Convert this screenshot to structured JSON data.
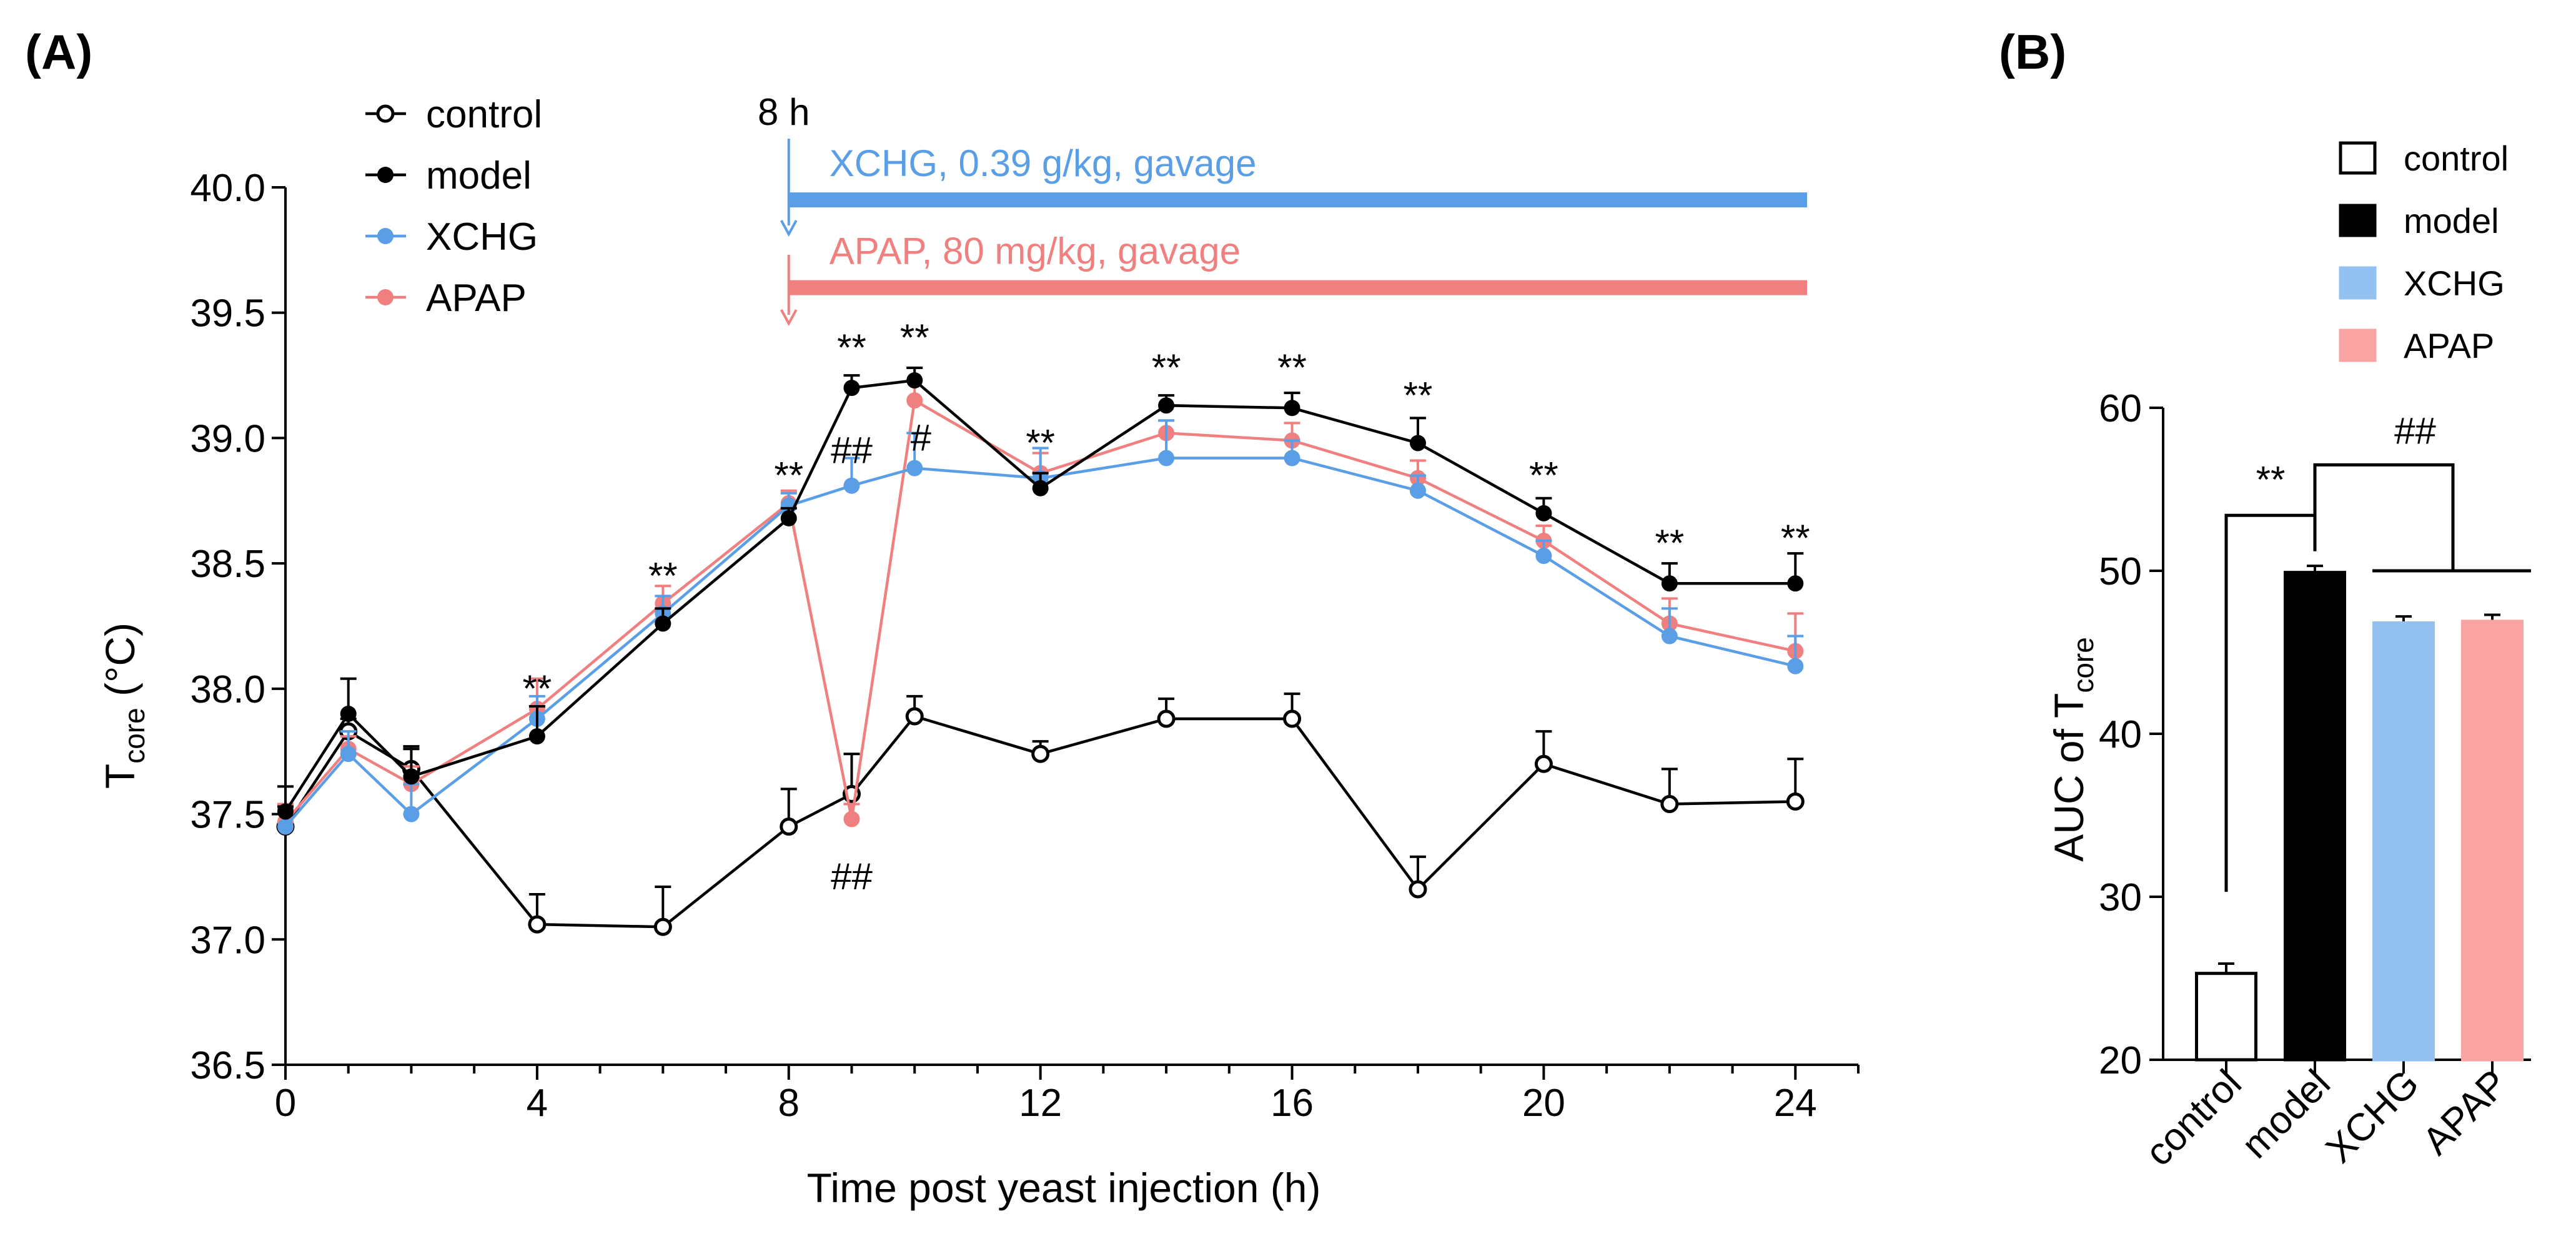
{
  "colors": {
    "control": "#000000",
    "model": "#000000",
    "XCHG_line": "#5a9ee6",
    "APAP_line": "#f08080",
    "XCHG_bar": "#92c1f2",
    "APAP_bar": "#f9a3a3",
    "XCHG_text": "#5a9ee6",
    "APAP_text": "#f08080"
  },
  "chart_data": [
    {
      "panel": "(A)",
      "type": "line",
      "xlabel": "Time post yeast injection (h)",
      "ylabel_main": "T",
      "ylabel_sub": "core",
      "ylabel_unit": "(°C)",
      "xlim": [
        0,
        25
      ],
      "ylim": [
        36.5,
        40.0
      ],
      "xticks": [
        "0",
        "4",
        "8",
        "12",
        "16",
        "20",
        "24"
      ],
      "yticks": [
        "36.5",
        "37.0",
        "37.5",
        "38.0",
        "38.5",
        "39.0",
        "39.5",
        "40.0"
      ],
      "x": [
        0,
        1,
        2,
        4,
        6,
        8,
        9,
        10,
        12,
        14,
        16,
        18,
        20,
        22,
        24
      ],
      "series": [
        {
          "name": "control",
          "marker": "open",
          "values": [
            37.45,
            37.83,
            37.68,
            37.06,
            37.05,
            37.45,
            37.58,
            37.89,
            37.74,
            37.88,
            37.88,
            37.2,
            37.7,
            37.54,
            37.55
          ],
          "errors": [
            0.08,
            0.05,
            0.08,
            0.12,
            0.16,
            0.15,
            0.16,
            0.08,
            0.05,
            0.08,
            0.1,
            0.13,
            0.13,
            0.14,
            0.17
          ]
        },
        {
          "name": "model",
          "marker": "filled",
          "values": [
            37.51,
            37.9,
            37.65,
            37.81,
            38.26,
            38.68,
            39.2,
            39.23,
            38.8,
            39.13,
            39.12,
            38.98,
            38.7,
            38.42,
            38.42
          ],
          "errors": [
            0.1,
            0.14,
            0.12,
            0.12,
            0.06,
            0.04,
            0.05,
            0.05,
            0.06,
            0.04,
            0.06,
            0.1,
            0.06,
            0.08,
            0.12
          ]
        },
        {
          "name": "XCHG",
          "marker": "filled",
          "values": [
            37.45,
            37.74,
            37.5,
            37.88,
            38.3,
            38.73,
            38.81,
            38.88,
            38.84,
            38.92,
            38.92,
            38.79,
            38.53,
            38.21,
            38.09
          ],
          "errors": [
            0.07,
            0.09,
            0.12,
            0.09,
            0.07,
            0.05,
            0.11,
            0.14,
            0.12,
            0.15,
            0.07,
            0.06,
            0.06,
            0.11,
            0.12
          ]
        },
        {
          "name": "APAP",
          "marker": "filled",
          "values": [
            37.47,
            37.76,
            37.62,
            37.92,
            38.34,
            38.74,
            37.48,
            39.15,
            38.86,
            39.02,
            38.99,
            38.84,
            38.59,
            38.26,
            38.15
          ],
          "errors": [
            0.07,
            0.05,
            0.07,
            0.12,
            0.07,
            0.05,
            0.06,
            0.08,
            0.08,
            0.05,
            0.07,
            0.07,
            0.06,
            0.1,
            0.15
          ]
        }
      ],
      "annotations": [
        {
          "x": 4,
          "y": 37.95,
          "text": "**"
        },
        {
          "x": 6,
          "y": 38.4,
          "text": "**"
        },
        {
          "x": 8,
          "y": 38.8,
          "text": "**"
        },
        {
          "x": 9,
          "y": 39.31,
          "text": "**"
        },
        {
          "x": 10,
          "y": 39.35,
          "text": "**"
        },
        {
          "x": 12,
          "y": 38.93,
          "text": "**"
        },
        {
          "x": 14,
          "y": 39.23,
          "text": "**"
        },
        {
          "x": 16,
          "y": 39.23,
          "text": "**"
        },
        {
          "x": 18,
          "y": 39.12,
          "text": "**"
        },
        {
          "x": 20,
          "y": 38.8,
          "text": "**"
        },
        {
          "x": 22,
          "y": 38.53,
          "text": "**"
        },
        {
          "x": 24,
          "y": 38.55,
          "text": "**"
        },
        {
          "x": 9,
          "y": 38.9,
          "text": "##"
        },
        {
          "x": 10.1,
          "y": 38.95,
          "text": "#"
        },
        {
          "x": 9,
          "y": 37.2,
          "text": "##"
        }
      ],
      "treatment_start_label": "8 h",
      "treatments": [
        {
          "name": "XCHG",
          "label": "XCHG, 0.39 g/kg, gavage",
          "level": 39.95
        },
        {
          "name": "APAP",
          "label": "APAP, 80 mg/kg, gavage",
          "level": 39.6
        }
      ],
      "legend": [
        "control",
        "model",
        "XCHG",
        "APAP"
      ],
      "legend_position": "top-left"
    },
    {
      "panel": "(B)",
      "type": "bar",
      "ylabel_main": "AUC of T",
      "ylabel_sub": "core",
      "categories": [
        "control",
        "model",
        "XCHG",
        "APAP"
      ],
      "values": [
        25.3,
        49.9,
        46.8,
        46.9
      ],
      "errors": [
        0.6,
        0.4,
        0.4,
        0.4
      ],
      "ylim": [
        20,
        60
      ],
      "yticks": [
        "20",
        "30",
        "40",
        "50",
        "60"
      ],
      "legend": [
        "control",
        "model",
        "XCHG",
        "APAP"
      ],
      "legend_position": "top-right",
      "significance": [
        {
          "text": "**",
          "from": "control",
          "to": "model"
        },
        {
          "text": "##",
          "from": "model",
          "to": "XCHG, APAP"
        }
      ]
    }
  ]
}
